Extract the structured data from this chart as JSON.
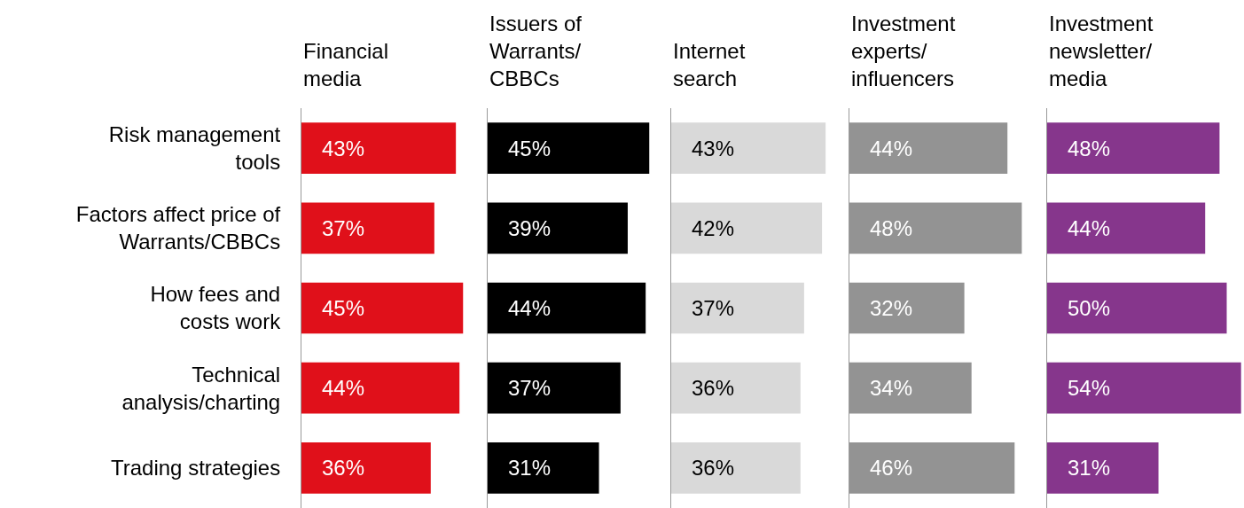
{
  "chart_data": [
    {
      "type": "bar",
      "orientation": "horizontal",
      "title": "Financial\nmedia",
      "categories": [
        "Risk management\ntools",
        "Factors affect price of\nWarrants/CBBCs",
        "How fees and\ncosts work",
        "Technical\nanalysis/charting",
        "Trading strategies"
      ],
      "values": [
        43,
        37,
        45,
        44,
        36
      ],
      "value_labels": [
        "43%",
        "37%",
        "45%",
        "44%",
        "36%"
      ],
      "color": "#e0101a",
      "tick_labels": "y"
    },
    {
      "type": "bar",
      "orientation": "horizontal",
      "title": "Issuers of\nWarrants/\nCBBCs",
      "categories": [
        "Risk management\ntools",
        "Factors affect price of\nWarrants/CBBCs",
        "How fees and\ncosts work",
        "Technical\nanalysis/charting",
        "Trading strategies"
      ],
      "values": [
        45,
        39,
        44,
        37,
        31
      ],
      "value_labels": [
        "45%",
        "39%",
        "44%",
        "37%",
        "31%"
      ],
      "color": "#000000",
      "tick_labels": false
    },
    {
      "type": "bar",
      "orientation": "horizontal",
      "title": "Internet\nsearch",
      "categories": [
        "Risk management\ntools",
        "Factors affect price of\nWarrants/CBBCs",
        "How fees and\ncosts work",
        "Technical\nanalysis/charting",
        "Trading strategies"
      ],
      "values": [
        43,
        42,
        37,
        36,
        36
      ],
      "value_labels": [
        "43%",
        "42%",
        "37%",
        "36%",
        "36%"
      ],
      "color": "#d9d9d9",
      "tick_labels": false
    },
    {
      "type": "bar",
      "orientation": "horizontal",
      "title": "Investment\nexperts/\ninfluencers",
      "categories": [
        "Risk management\ntools",
        "Factors affect price of\nWarrants/CBBCs",
        "How fees and\ncosts work",
        "Technical\nanalysis/charting",
        "Trading strategies"
      ],
      "values": [
        44,
        48,
        32,
        34,
        46
      ],
      "value_labels": [
        "44%",
        "48%",
        "32%",
        "34%",
        "46%"
      ],
      "color": "#939393",
      "tick_labels": false
    },
    {
      "type": "bar",
      "orientation": "horizontal",
      "title": "Investment\nnewsletter/\nmedia",
      "categories": [
        "Risk management\ntools",
        "Factors affect price of\nWarrants/CBBCs",
        "How fees and\ncosts work",
        "Technical\nanalysis/charting",
        "Trading strategies"
      ],
      "values": [
        48,
        44,
        50,
        54,
        31
      ],
      "value_labels": [
        "48%",
        "44%",
        "50%",
        "54%",
        "31%"
      ],
      "color": "#86368c",
      "tick_labels": false
    }
  ]
}
